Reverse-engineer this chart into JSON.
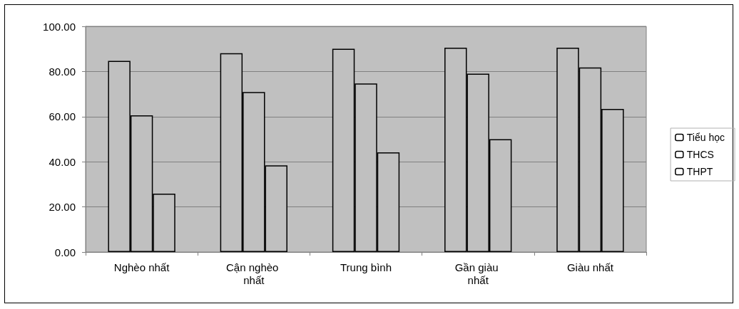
{
  "chart_data": {
    "type": "bar",
    "categories": [
      "Nghèo nhất",
      "Cận nghèo nhất",
      "Trung bình",
      "Gần giàu nhất",
      "Giàu nhất"
    ],
    "series": [
      {
        "name": "Tiểu học",
        "color": "#c0c0c0",
        "values": [
          84.7,
          88.1,
          90.1,
          90.5,
          90.5
        ]
      },
      {
        "name": "THCS",
        "color": "#c0c0c0",
        "values": [
          60.6,
          70.9,
          74.7,
          79.0,
          81.8
        ]
      },
      {
        "name": "THPT",
        "color": "#c0c0c0",
        "values": [
          25.9,
          38.4,
          44.2,
          50.0,
          63.4
        ]
      }
    ],
    "ylim": [
      0,
      100
    ],
    "yticks": [
      {
        "value": 0,
        "label": "0.00"
      },
      {
        "value": 20,
        "label": "20.00"
      },
      {
        "value": 40,
        "label": "40.00"
      },
      {
        "value": 60,
        "label": "60.00"
      },
      {
        "value": 80,
        "label": "80.00"
      },
      {
        "value": 100,
        "label": "100.00"
      }
    ],
    "grid": "y",
    "legend": "right"
  }
}
